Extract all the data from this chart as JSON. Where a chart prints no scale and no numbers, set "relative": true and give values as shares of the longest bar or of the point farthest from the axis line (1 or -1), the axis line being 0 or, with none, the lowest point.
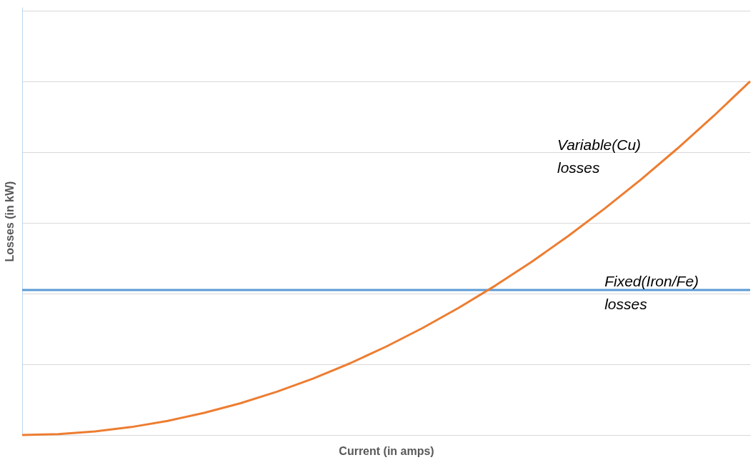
{
  "chart_data": {
    "type": "line",
    "relative": true,
    "xlabel": "Current (in amps)",
    "ylabel": "Losses (in kW)",
    "categories": [
      null,
      null,
      null,
      null,
      null,
      null,
      null,
      null,
      null,
      null,
      null,
      null,
      null,
      null,
      null,
      null,
      null,
      null,
      null,
      null,
      null
    ],
    "series": [
      {
        "name": "Fixed(Iron/Fe) losses",
        "color": "#5b9bd5",
        "values": [
          0.41,
          0.41,
          0.41,
          0.41,
          0.41,
          0.41,
          0.41,
          0.41,
          0.41,
          0.41,
          0.41,
          0.41,
          0.41,
          0.41,
          0.41,
          0.41,
          0.41,
          0.41,
          0.41,
          0.41,
          0.41
        ]
      },
      {
        "name": "Variable(Cu) losses",
        "color": "#ed7d31",
        "values": [
          0,
          0.0025,
          0.01,
          0.0225,
          0.04,
          0.0625,
          0.09,
          0.1225,
          0.16,
          0.2025,
          0.25,
          0.3025,
          0.36,
          0.4225,
          0.49,
          0.5625,
          0.64,
          0.7225,
          0.81,
          0.9025,
          1
        ]
      }
    ],
    "grid": "y",
    "legend": false,
    "marker": "none",
    "line_style": "solid"
  }
}
